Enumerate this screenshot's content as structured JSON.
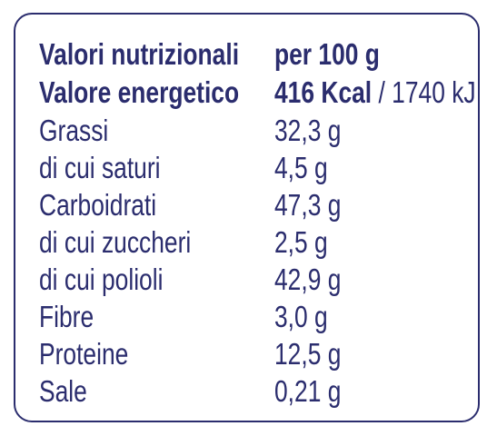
{
  "header": {
    "label": "Valori nutrizionali",
    "value": "per 100 g"
  },
  "energy": {
    "label": "Valore energetico",
    "value_kcal": "416 Kcal",
    "value_kj": " / 1740 kJ"
  },
  "rows": [
    {
      "label": "Grassi",
      "value": "32,3 g"
    },
    {
      "label": "di cui saturi",
      "value": "4,5 g"
    },
    {
      "label": "Carboidrati",
      "value": "47,3 g"
    },
    {
      "label": "di cui zuccheri",
      "value": "2,5 g"
    },
    {
      "label": "di cui polioli",
      "value": "42,9 g"
    },
    {
      "label": "Fibre",
      "value": "3,0 g"
    },
    {
      "label": "Proteine",
      "value": "12,5 g"
    },
    {
      "label": "Sale",
      "value": "0,21 g"
    }
  ],
  "colors": {
    "text": "#2b2d6e",
    "border": "#2b2d6e",
    "background": "#ffffff"
  }
}
